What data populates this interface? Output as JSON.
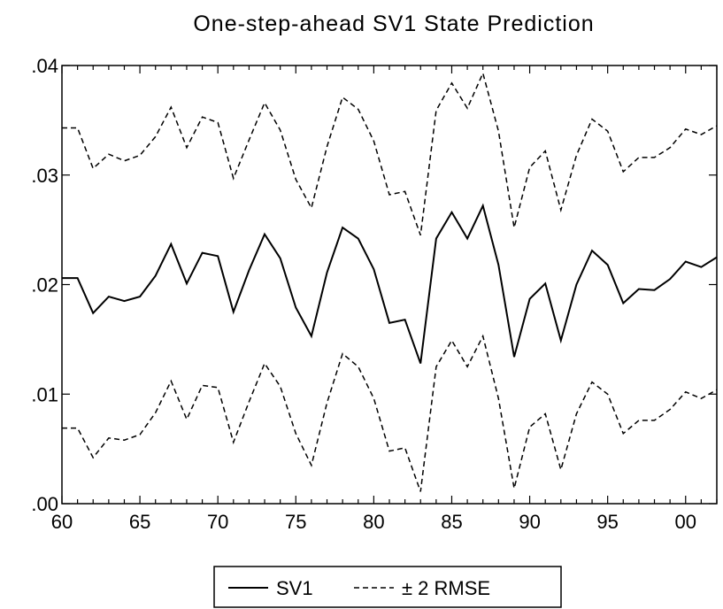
{
  "chart_data": {
    "type": "line",
    "title": "One-step-ahead SV1 State Prediction",
    "xlabel": "",
    "ylabel": "",
    "x": [
      "1960",
      "1961",
      "1962",
      "1963",
      "1964",
      "1965",
      "1966",
      "1967",
      "1968",
      "1969",
      "1970",
      "1971",
      "1972",
      "1973",
      "1974",
      "1975",
      "1976",
      "1977",
      "1978",
      "1979",
      "1980",
      "1981",
      "1982",
      "1983",
      "1984",
      "1985",
      "1986",
      "1987",
      "1988",
      "1989",
      "1990",
      "1991",
      "1992",
      "1993",
      "1994",
      "1995",
      "1996",
      "1997",
      "1998",
      "1999",
      "2000",
      "2001",
      "2002"
    ],
    "xlim": [
      "1960",
      "2002"
    ],
    "ylim": [
      0.0,
      0.04
    ],
    "x_ticks": [
      "60",
      "65",
      "70",
      "75",
      "80",
      "85",
      "90",
      "95",
      "00"
    ],
    "y_ticks": [
      ".00",
      ".01",
      ".02",
      ".03",
      ".04"
    ],
    "y_tick_values": [
      0.0,
      0.01,
      0.02,
      0.03,
      0.04
    ],
    "series": [
      {
        "name": "SV1",
        "style": "solid",
        "values": [
          0.0206,
          0.0206,
          0.0174,
          0.0189,
          0.0185,
          0.0189,
          0.0208,
          0.0237,
          0.0201,
          0.0229,
          0.0226,
          0.0175,
          0.0213,
          0.0246,
          0.0224,
          0.0179,
          0.0153,
          0.0211,
          0.0252,
          0.0242,
          0.0214,
          0.0165,
          0.0168,
          0.0128,
          0.0242,
          0.0266,
          0.0242,
          0.0272,
          0.0218,
          0.0134,
          0.0187,
          0.0201,
          0.0149,
          0.02,
          0.0231,
          0.0218,
          0.0183,
          0.0196,
          0.0195,
          0.0205,
          0.0221,
          0.0216,
          0.0225
        ]
      },
      {
        "name": "± 2 RMSE",
        "style": "dashed",
        "values": [
          0.0343,
          0.0343,
          0.0306,
          0.0319,
          0.0313,
          0.0318,
          0.0335,
          0.0362,
          0.0325,
          0.0353,
          0.0348,
          0.0297,
          0.0332,
          0.0366,
          0.0341,
          0.0296,
          0.027,
          0.0326,
          0.0371,
          0.036,
          0.0331,
          0.0282,
          0.0285,
          0.0245,
          0.0359,
          0.0384,
          0.0361,
          0.0393,
          0.034,
          0.0252,
          0.0307,
          0.0322,
          0.0268,
          0.0318,
          0.0351,
          0.034,
          0.0303,
          0.0316,
          0.0316,
          0.0325,
          0.0342,
          0.0337,
          0.0345
        ]
      },
      {
        "name": "",
        "style": "dashed",
        "values": [
          0.0069,
          0.0069,
          0.0042,
          0.006,
          0.0058,
          0.0063,
          0.0083,
          0.0112,
          0.0077,
          0.0108,
          0.0106,
          0.0056,
          0.0093,
          0.0128,
          0.0107,
          0.0064,
          0.0035,
          0.0092,
          0.0137,
          0.0125,
          0.0096,
          0.0048,
          0.0051,
          0.0011,
          0.0125,
          0.0149,
          0.0125,
          0.0153,
          0.0096,
          0.0014,
          0.007,
          0.0082,
          0.0031,
          0.0082,
          0.0111,
          0.01,
          0.0064,
          0.0076,
          0.0076,
          0.0086,
          0.0102,
          0.0096,
          0.0104
        ]
      }
    ],
    "legend": {
      "placement": "bottom-center",
      "entries": [
        {
          "label": "SV1",
          "style": "solid"
        },
        {
          "label": "± 2 RMSE",
          "style": "dashed"
        }
      ]
    },
    "grid": false,
    "line_color": "#000000"
  }
}
